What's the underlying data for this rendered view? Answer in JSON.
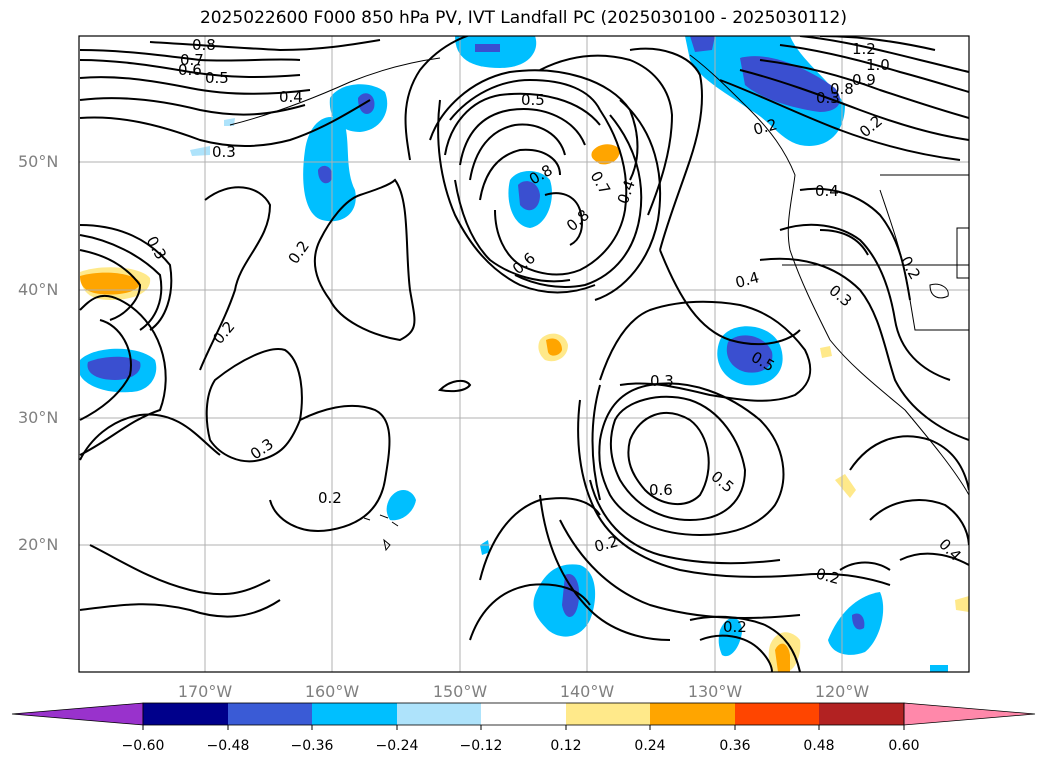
{
  "title": "2025022600 F000 850 hPa PV, IVT Landfall PC (2025030100 - 2025030112)",
  "lat_labels": [
    "50°N",
    "40°N",
    "30°N",
    "20°N"
  ],
  "lon_labels": [
    "170°W",
    "160°W",
    "150°W",
    "140°W",
    "130°W",
    "120°W"
  ],
  "contour_labels": [
    "0.8",
    "0.7",
    "0.6",
    "0.5",
    "0.4",
    "0.3",
    "0.2",
    "0.3",
    "0.2",
    "0.3",
    "0.2",
    "0.5",
    "0.8",
    "0.7",
    "0.8",
    "0.6",
    "0.4",
    "0.4",
    "0.3",
    "0.2",
    "0.3",
    "0.6",
    "0.5",
    "0.2",
    "0.2",
    "0.2",
    "0.5",
    "0.4",
    "1.2",
    "1.0",
    "0.9",
    "0.8",
    "0.2",
    "0.2",
    "0.4",
    "0.3"
  ],
  "colorbar": {
    "ticks": [
      "−0.60",
      "−0.48",
      "−0.36",
      "−0.24",
      "−0.12",
      "0.12",
      "0.24",
      "0.36",
      "0.48",
      "0.60"
    ],
    "colors": [
      "#9932cc",
      "#00008b",
      "#3a5bd6",
      "#00bfff",
      "#aee3fb",
      "#ffffff",
      "#ffe98a",
      "#ffa500",
      "#ff4500",
      "#b22222",
      "#ff88aa"
    ]
  },
  "colors": {
    "strong_neg": "#3a4fd0",
    "neg": "#00bfff",
    "weak_neg": "#aee3fb",
    "pos": "#ffa500",
    "weak_pos": "#ffe98a",
    "contour": "#000000"
  }
}
